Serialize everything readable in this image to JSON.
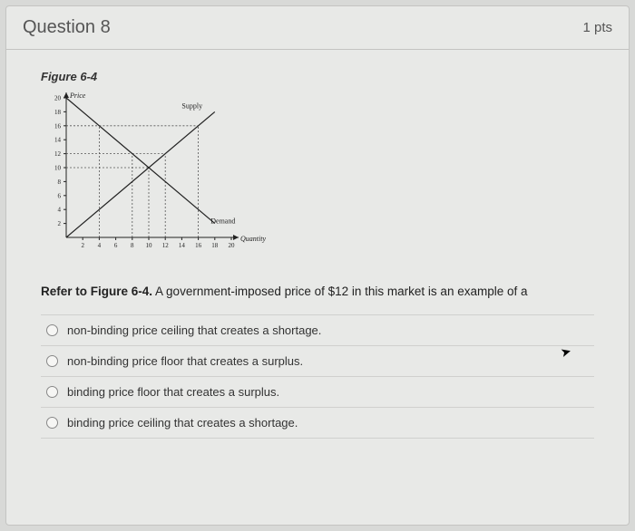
{
  "header": {
    "title": "Question 8",
    "points": "1 pts"
  },
  "figure": {
    "label": "Figure 6-4",
    "chart": {
      "type": "line",
      "x_axis": {
        "label": "Quantity",
        "min": 0,
        "max": 20,
        "tick_step": 2
      },
      "y_axis": {
        "label": "Price",
        "min": 0,
        "max": 20,
        "tick_step": 2
      },
      "label_fontsize": 8,
      "tick_fontsize": 7,
      "axis_color": "#222222",
      "ref_line_style": "dash",
      "ref_line_color": "#555555",
      "series": [
        {
          "name": "Supply",
          "points": [
            [
              0,
              0
            ],
            [
              18,
              18
            ]
          ],
          "color": "#222222",
          "label_pos": [
            14,
            18.5
          ]
        },
        {
          "name": "Demand",
          "points": [
            [
              0,
              20
            ],
            [
              18,
              2
            ]
          ],
          "color": "#222222",
          "label_pos": [
            17.5,
            2
          ]
        }
      ],
      "reference_lines": [
        {
          "from": [
            0,
            16
          ],
          "to": [
            4,
            16
          ]
        },
        {
          "from": [
            4,
            0
          ],
          "to": [
            4,
            16
          ]
        },
        {
          "from": [
            0,
            12
          ],
          "to": [
            8,
            12
          ]
        },
        {
          "from": [
            8,
            0
          ],
          "to": [
            8,
            12
          ]
        },
        {
          "from": [
            0,
            10
          ],
          "to": [
            10,
            10
          ]
        },
        {
          "from": [
            10,
            0
          ],
          "to": [
            10,
            10
          ]
        },
        {
          "from": [
            8,
            12
          ],
          "to": [
            12,
            12
          ]
        },
        {
          "from": [
            12,
            0
          ],
          "to": [
            12,
            12
          ]
        },
        {
          "from": [
            4,
            16
          ],
          "to": [
            16,
            16
          ]
        },
        {
          "from": [
            16,
            0
          ],
          "to": [
            16,
            16
          ]
        }
      ]
    }
  },
  "prompt": {
    "prefix": "Refer to Figure 6-4.",
    "rest": " A government-imposed price of $12 in this market is an example of a"
  },
  "options": [
    {
      "label": "non-binding price ceiling that creates a shortage."
    },
    {
      "label": "non-binding price floor that creates a surplus."
    },
    {
      "label": "binding price floor that creates a surplus."
    },
    {
      "label": "binding price ceiling that creates a shortage."
    }
  ]
}
